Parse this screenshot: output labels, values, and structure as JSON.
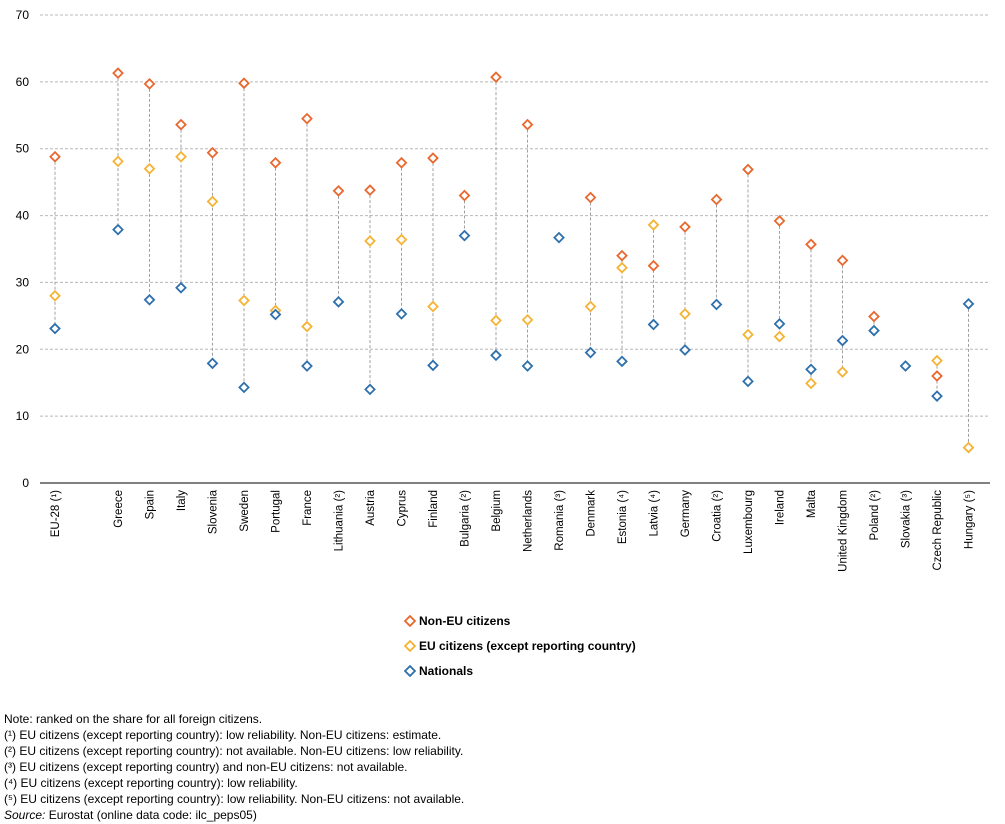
{
  "chart_data": {
    "type": "scatter",
    "title": "",
    "xlabel": "",
    "ylabel": "",
    "ylim": [
      0,
      70
    ],
    "yticks": [
      0,
      10,
      20,
      30,
      40,
      50,
      60,
      70
    ],
    "grid": "horizontal dashed",
    "legend_position": "bottom-center",
    "marker": "open diamond",
    "categories": [
      "EU-28 (¹)",
      "",
      "Greece",
      "Spain",
      "Italy",
      "Slovenia",
      "Sweden",
      "Portugal",
      "France",
      "Lithuania (²)",
      "Austria",
      "Cyprus",
      "Finland",
      "Bulgaria (²)",
      "Belgium",
      "Netherlands",
      "Romania (³)",
      "Denmark",
      "Estonia (⁴)",
      "Latvia (⁴)",
      "Germany",
      "Croatia (²)",
      "Luxembourg",
      "Ireland",
      "Malta",
      "United Kingdom",
      "Poland (²)",
      "Slovakia (³)",
      "Czech Republic",
      "Hungary (⁵)"
    ],
    "series": [
      {
        "name": "Non-EU citizens",
        "color": "#E8682E",
        "values": [
          48.8,
          null,
          61.3,
          59.7,
          53.6,
          49.4,
          59.8,
          47.9,
          54.5,
          43.7,
          43.8,
          47.9,
          48.6,
          43.0,
          60.7,
          53.6,
          null,
          42.7,
          34.0,
          32.5,
          38.3,
          42.4,
          46.9,
          39.2,
          35.7,
          33.3,
          24.9,
          null,
          16.0,
          null
        ]
      },
      {
        "name": "EU citizens (except reporting country)",
        "color": "#F5B335",
        "values": [
          28.0,
          null,
          48.1,
          47.0,
          48.8,
          42.1,
          27.3,
          25.8,
          23.4,
          null,
          36.2,
          36.4,
          26.4,
          null,
          24.3,
          24.4,
          null,
          26.4,
          32.2,
          38.6,
          25.3,
          null,
          22.2,
          21.9,
          14.9,
          16.6,
          null,
          null,
          18.3,
          5.3
        ]
      },
      {
        "name": "Nationals",
        "color": "#2E70AC",
        "values": [
          23.1,
          null,
          37.9,
          27.4,
          29.2,
          17.9,
          14.3,
          25.2,
          17.5,
          27.1,
          14.0,
          25.3,
          17.6,
          37.0,
          19.1,
          17.5,
          36.7,
          19.5,
          18.2,
          23.7,
          19.9,
          26.7,
          15.2,
          23.8,
          17.0,
          21.3,
          22.8,
          17.5,
          13.0,
          26.8
        ]
      }
    ]
  },
  "legend": {
    "items": [
      {
        "label": "Non-EU citizens",
        "color": "#E8682E"
      },
      {
        "label": "EU citizens (except reporting country)",
        "color": "#F5B335"
      },
      {
        "label": "Nationals",
        "color": "#2E70AC"
      }
    ]
  },
  "notes": {
    "lines": [
      "Note: ranked on the share for all foreign citizens.",
      "(¹) EU citizens (except reporting country): low reliability. Non-EU citizens: estimate.",
      "(²) EU citizens (except reporting country): not available. Non-EU citizens: low reliability.",
      "(³) EU citizens (except reporting country) and non-EU citizens: not available.",
      "(⁴) EU citizens (except reporting country): low reliability.",
      "(⁵) EU citizens (except reporting country): low reliability. Non-EU citizens: not available."
    ],
    "source_label": "Source:",
    "source_text": " Eurostat (online data code: ilc_peps05)"
  }
}
